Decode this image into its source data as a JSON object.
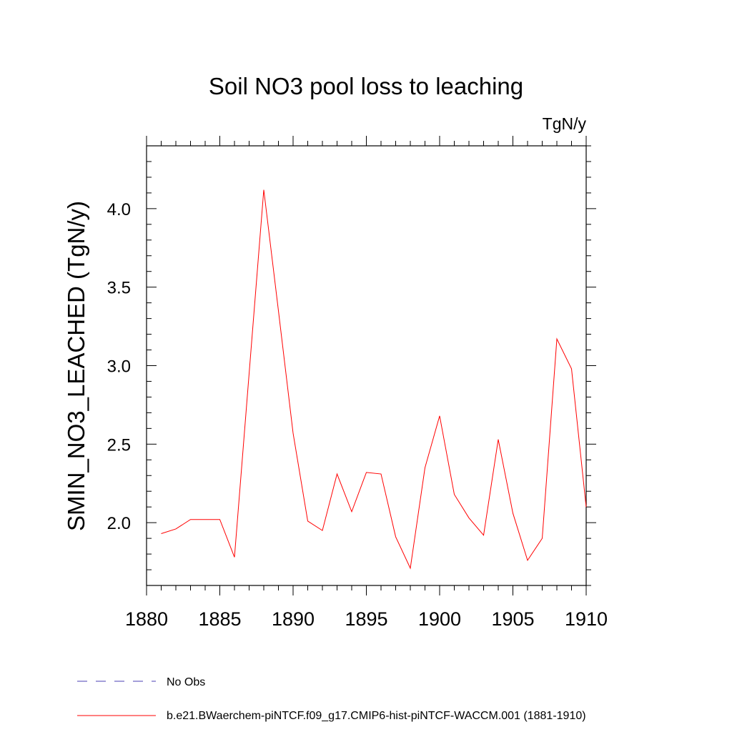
{
  "chart_data": {
    "type": "line",
    "title": "Soil NO3 pool loss to leaching",
    "units": "TgN/y",
    "xlabel": "",
    "ylabel": "SMIN_NO3_LEACHED  (TgN/y)",
    "xlim": [
      1880,
      1910
    ],
    "ylim": [
      1.6,
      4.4
    ],
    "x_ticks": [
      1880,
      1885,
      1890,
      1895,
      1900,
      1905,
      1910
    ],
    "y_ticks": [
      2.0,
      2.5,
      3.0,
      3.5,
      4.0
    ],
    "y_tick_labels": [
      "2.0",
      "2.5",
      "3.0",
      "3.5",
      "4.0"
    ],
    "grid": false,
    "legend_position": "bottom",
    "series": [
      {
        "name": "b.e21.BWaerchem-piNTCF.f09_g17.CMIP6-hist-piNTCF-WACCM.001 (1881-1910)",
        "color": "#ff0000",
        "style": "solid",
        "x": [
          1881,
          1882,
          1883,
          1884,
          1885,
          1886,
          1887,
          1888,
          1889,
          1890,
          1891,
          1892,
          1893,
          1894,
          1895,
          1896,
          1897,
          1898,
          1899,
          1900,
          1901,
          1902,
          1903,
          1904,
          1905,
          1906,
          1907,
          1908,
          1909,
          1910
        ],
        "y": [
          1.93,
          1.96,
          2.02,
          2.02,
          2.02,
          1.78,
          2.95,
          4.12,
          3.35,
          2.57,
          2.01,
          1.95,
          2.31,
          2.07,
          2.32,
          2.31,
          1.91,
          1.71,
          2.35,
          2.68,
          2.18,
          2.03,
          1.92,
          2.53,
          2.06,
          1.76,
          1.9,
          3.17,
          2.98,
          2.1
        ]
      }
    ],
    "legend": [
      {
        "label": "No Obs",
        "color": "#4a3fb5",
        "style": "dashed"
      },
      {
        "label": "b.e21.BWaerchem-piNTCF.f09_g17.CMIP6-hist-piNTCF-WACCM.001 (1881-1910)",
        "color": "#ff0000",
        "style": "solid"
      }
    ]
  }
}
